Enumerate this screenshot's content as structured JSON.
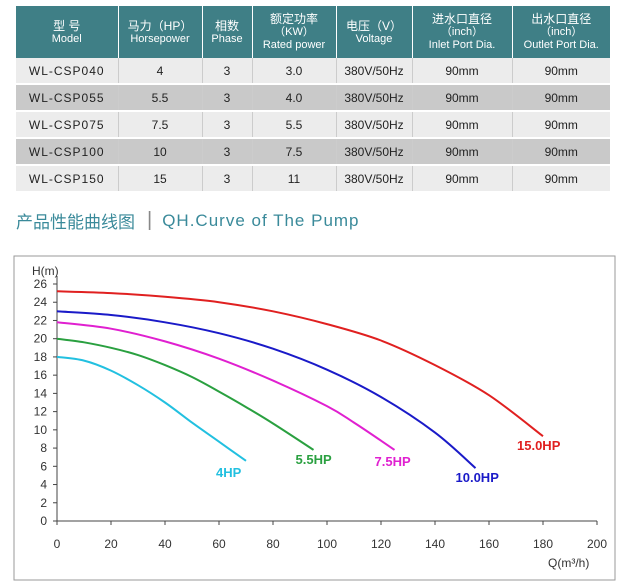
{
  "table": {
    "headers": [
      {
        "cn": "型 号",
        "en": "Model"
      },
      {
        "cn": "马力（HP）",
        "en": "Horsepower"
      },
      {
        "cn": "相数",
        "en": "Phase"
      },
      {
        "cn": "额定功率",
        "cn2": "（KW）",
        "en": "Rated power"
      },
      {
        "cn": "电压（V）",
        "en": "Voltage"
      },
      {
        "cn": "进水口直径",
        "cn2": "（inch）",
        "en": "Inlet Port Dia."
      },
      {
        "cn": "出水口直径",
        "cn2": "（inch）",
        "en": "Outlet Port Dia."
      }
    ],
    "rows": [
      [
        "WL-CSP040",
        "4",
        "3",
        "3.0",
        "380V/50Hz",
        "90mm",
        "90mm"
      ],
      [
        "WL-CSP055",
        "5.5",
        "3",
        "4.0",
        "380V/50Hz",
        "90mm",
        "90mm"
      ],
      [
        "WL-CSP075",
        "7.5",
        "3",
        "5.5",
        "380V/50Hz",
        "90mm",
        "90mm"
      ],
      [
        "WL-CSP100",
        "10",
        "3",
        "7.5",
        "380V/50Hz",
        "90mm",
        "90mm"
      ],
      [
        "WL-CSP150",
        "15",
        "3",
        "11",
        "380V/50Hz",
        "90mm",
        "90mm"
      ]
    ]
  },
  "section": {
    "title_cn": "产品性能曲线图",
    "divider": "|",
    "title_en": "QH.Curve of The Pump"
  },
  "chart_data": {
    "type": "line",
    "ylabel": "H(m)",
    "xlabel": "Q(m³/h)",
    "xlim": [
      0,
      200
    ],
    "ylim": [
      0,
      26
    ],
    "xticks": [
      0,
      20,
      40,
      60,
      80,
      100,
      120,
      140,
      160,
      180,
      200
    ],
    "yticks": [
      0,
      2,
      4,
      6,
      8,
      10,
      12,
      14,
      16,
      18,
      20,
      22,
      24,
      26
    ],
    "grid": false,
    "series": [
      {
        "name": "4HP",
        "color": "#22c0e0",
        "x": [
          0,
          10,
          20,
          30,
          40,
          50,
          60,
          70
        ],
        "y": [
          18.0,
          17.6,
          16.5,
          14.9,
          13.0,
          10.8,
          8.7,
          6.6
        ]
      },
      {
        "name": "5.5HP",
        "color": "#2aa040",
        "x": [
          0,
          10,
          20,
          30,
          40,
          50,
          60,
          70,
          80,
          95
        ],
        "y": [
          20.0,
          19.6,
          19.0,
          18.2,
          17.1,
          15.8,
          14.2,
          12.5,
          10.7,
          7.8
        ]
      },
      {
        "name": "7.5HP",
        "color": "#e020d0",
        "x": [
          0,
          20,
          40,
          60,
          80,
          100,
          110,
          125
        ],
        "y": [
          21.8,
          21.1,
          19.7,
          17.8,
          15.4,
          12.6,
          10.8,
          7.8
        ]
      },
      {
        "name": "10.0HP",
        "color": "#1a1ac8",
        "x": [
          0,
          20,
          40,
          60,
          80,
          100,
          120,
          140,
          155
        ],
        "y": [
          23.0,
          22.6,
          21.8,
          20.6,
          18.9,
          16.6,
          13.6,
          9.7,
          5.8
        ]
      },
      {
        "name": "15.0HP",
        "color": "#e02020",
        "x": [
          0,
          20,
          40,
          60,
          80,
          100,
          120,
          140,
          160,
          180
        ],
        "y": [
          25.2,
          25.0,
          24.6,
          24.0,
          23.0,
          21.6,
          19.8,
          17.1,
          13.8,
          9.3
        ]
      }
    ]
  }
}
